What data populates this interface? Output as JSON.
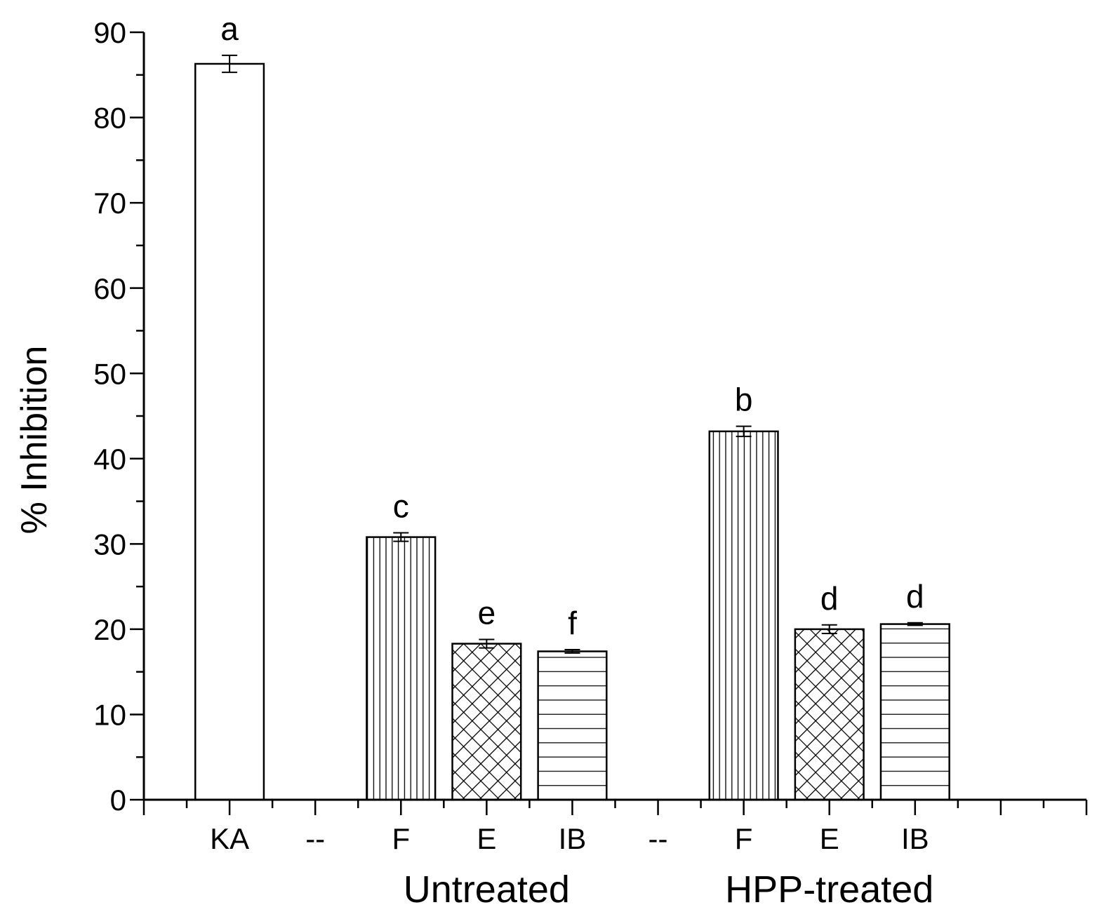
{
  "chart_data": {
    "type": "bar",
    "ylabel": "% Inhibition",
    "ylim": [
      0,
      90
    ],
    "yticks": [
      0,
      10,
      20,
      30,
      40,
      50,
      60,
      70,
      80,
      90
    ],
    "categories": [
      "KA",
      "--",
      "F",
      "E",
      "IB",
      "--",
      "F",
      "E",
      "IB"
    ],
    "values": [
      86.3,
      null,
      30.8,
      18.3,
      17.4,
      null,
      43.2,
      20.0,
      20.6
    ],
    "errors": [
      1.0,
      null,
      0.5,
      0.5,
      0.2,
      null,
      0.6,
      0.5,
      0.15
    ],
    "significance_letters": [
      "a",
      "",
      "c",
      "e",
      "f",
      "",
      "b",
      "d",
      "d"
    ],
    "groups": [
      {
        "label": "Untreated",
        "members": [
          2,
          3,
          4
        ]
      },
      {
        "label": "HPP-treated",
        "members": [
          6,
          7,
          8
        ]
      }
    ],
    "bar_fill_patterns": [
      "plain",
      null,
      "vertical-lines",
      "crosshatch",
      "horizontal-lines",
      null,
      "vertical-lines",
      "crosshatch",
      "horizontal-lines"
    ],
    "grid": false,
    "colors": {
      "bar_fill": "#ffffff",
      "line": "#000000"
    }
  }
}
